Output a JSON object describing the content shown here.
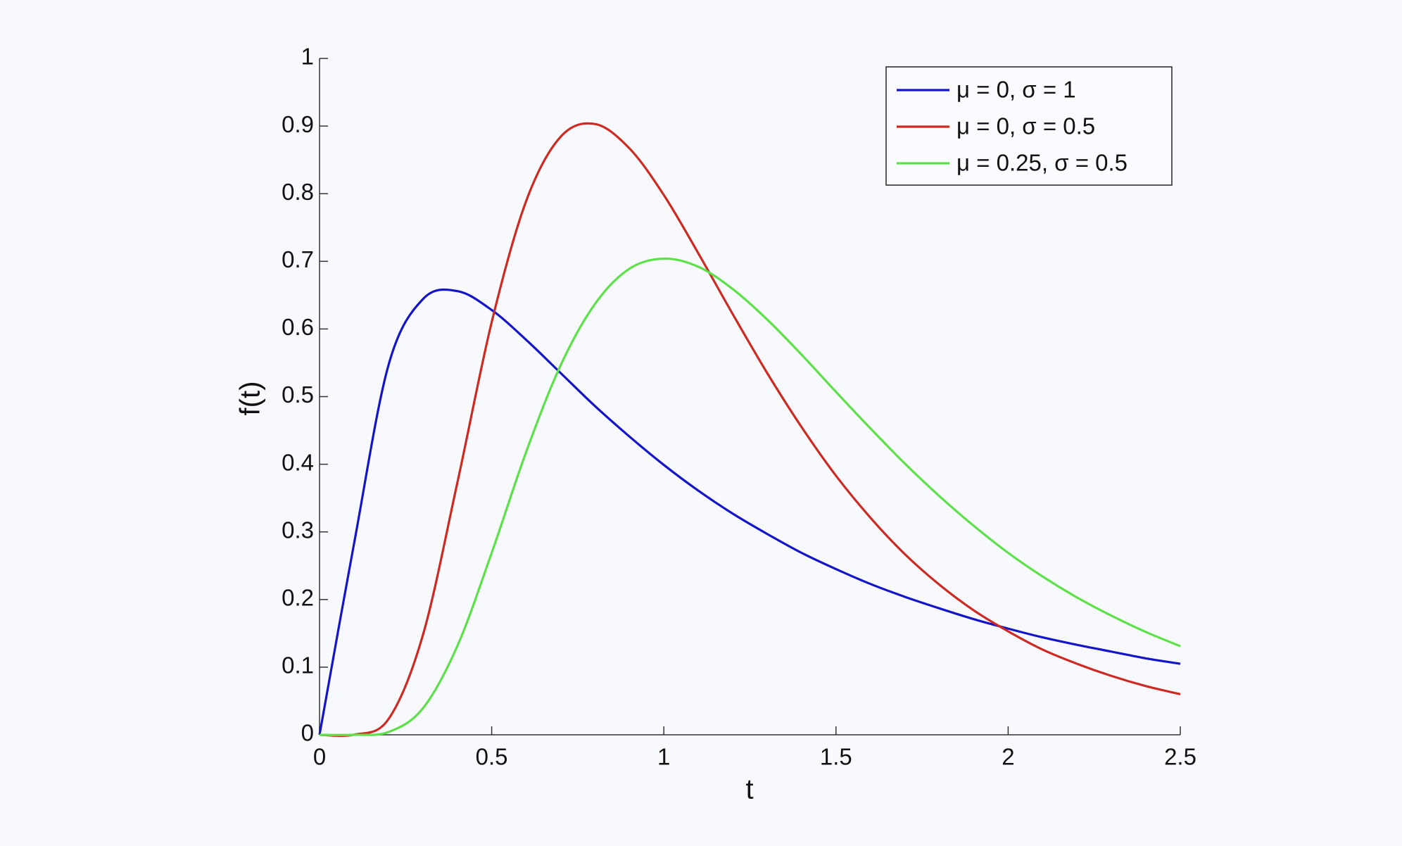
{
  "chart_data": {
    "type": "line",
    "xlabel": "t",
    "ylabel": "f(t)",
    "x": [
      0,
      0.1,
      0.2,
      0.3,
      0.4,
      0.5,
      0.6,
      0.7,
      0.8,
      0.9,
      1.0,
      1.1,
      1.2,
      1.3,
      1.4,
      1.5,
      1.6,
      1.7,
      1.8,
      1.9,
      2.0,
      2.1,
      2.2,
      2.3,
      2.4,
      2.5
    ],
    "series": [
      {
        "name": "μ = 0, σ = 1",
        "color": "#1414c8",
        "values": [
          0,
          0.282,
          0.546,
          0.644,
          0.656,
          0.628,
          0.584,
          0.535,
          0.486,
          0.441,
          0.399,
          0.361,
          0.327,
          0.297,
          0.269,
          0.245,
          0.223,
          0.204,
          0.187,
          0.171,
          0.157,
          0.144,
          0.133,
          0.123,
          0.113,
          0.105
        ]
      },
      {
        "name": "μ = 0, σ = 0.5",
        "color": "#cc2a22",
        "values": [
          0,
          0.0002,
          0.023,
          0.147,
          0.372,
          0.61,
          0.789,
          0.884,
          0.903,
          0.867,
          0.798,
          0.712,
          0.622,
          0.535,
          0.455,
          0.383,
          0.321,
          0.267,
          0.222,
          0.184,
          0.153,
          0.126,
          0.105,
          0.087,
          0.072,
          0.06
        ]
      },
      {
        "name": "μ = 0.25, σ = 0.5",
        "color": "#5ee04a",
        "values": [
          0,
          0,
          0.004,
          0.039,
          0.131,
          0.269,
          0.418,
          0.546,
          0.637,
          0.689,
          0.704,
          0.692,
          0.659,
          0.614,
          0.562,
          0.507,
          0.453,
          0.401,
          0.353,
          0.309,
          0.269,
          0.234,
          0.203,
          0.176,
          0.152,
          0.131
        ]
      }
    ],
    "xlim": [
      0,
      2.5
    ],
    "xticks": [
      0,
      0.5,
      1,
      1.5,
      2,
      2.5
    ],
    "ylim": [
      0,
      1
    ],
    "yticks": [
      0,
      0.1,
      0.2,
      0.3,
      0.4,
      0.5,
      0.6,
      0.7,
      0.8,
      0.9,
      1
    ],
    "grid": false,
    "legend": "upper right"
  }
}
